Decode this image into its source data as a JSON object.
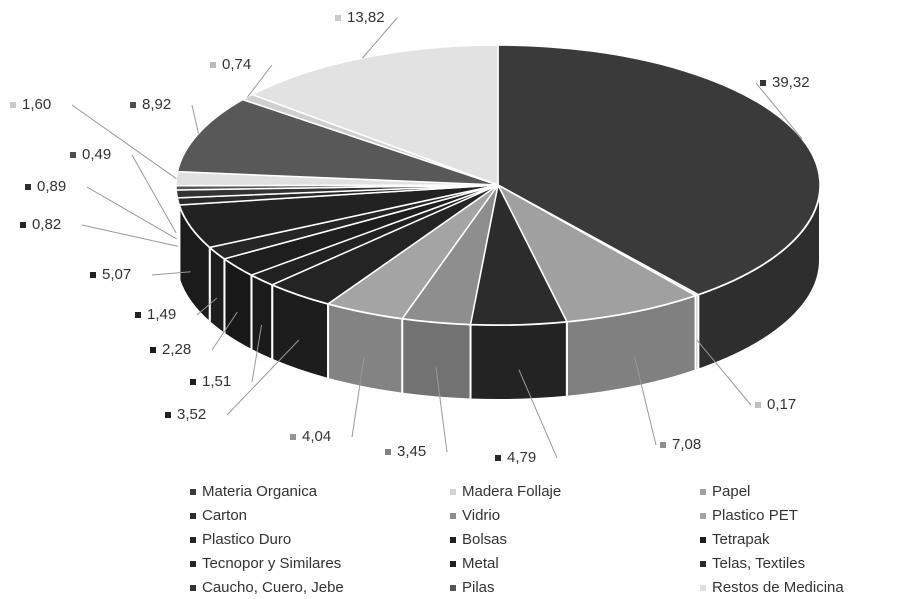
{
  "chart_data": {
    "type": "pie3d",
    "categories": [
      "Materia Organica",
      "Madera Follaje",
      "Papel",
      "Carton",
      "Vidrio",
      "Plastico PET",
      "Plastico Duro",
      "Bolsas",
      "Tetrapak",
      "Tecnopor y Similares",
      "Metal",
      "Telas, Textiles",
      "Caucho, Cuero, Jebe",
      "Pilas",
      "Restos de Medicina",
      null,
      null,
      null
    ],
    "values": [
      39.32,
      0.17,
      7.08,
      4.79,
      3.45,
      4.04,
      3.52,
      1.51,
      2.28,
      1.49,
      5.07,
      0.82,
      0.89,
      0.49,
      1.6,
      8.92,
      0.74,
      13.82
    ],
    "value_labels": [
      "39,32",
      "0,17",
      "7,08",
      "4,79",
      "3,45",
      "4,04",
      "3,52",
      "1,51",
      "2,28",
      "1,49",
      "5,07",
      "0,82",
      "0,89",
      "0,49",
      "1,60",
      "8,92",
      "0,74",
      "13,82"
    ],
    "colors": [
      "#3a3a3a",
      "#d4d4d4",
      "#a0a0a0",
      "#2c2c2c",
      "#8e8e8e",
      "#a4a4a4",
      "#242424",
      "#222222",
      "#1e1e1e",
      "#262626",
      "#222222",
      "#2a2a2a",
      "#333333",
      "#555555",
      "#e0e0e0",
      "#585858",
      "#cfcfcf",
      "#e2e2e2"
    ]
  }
}
